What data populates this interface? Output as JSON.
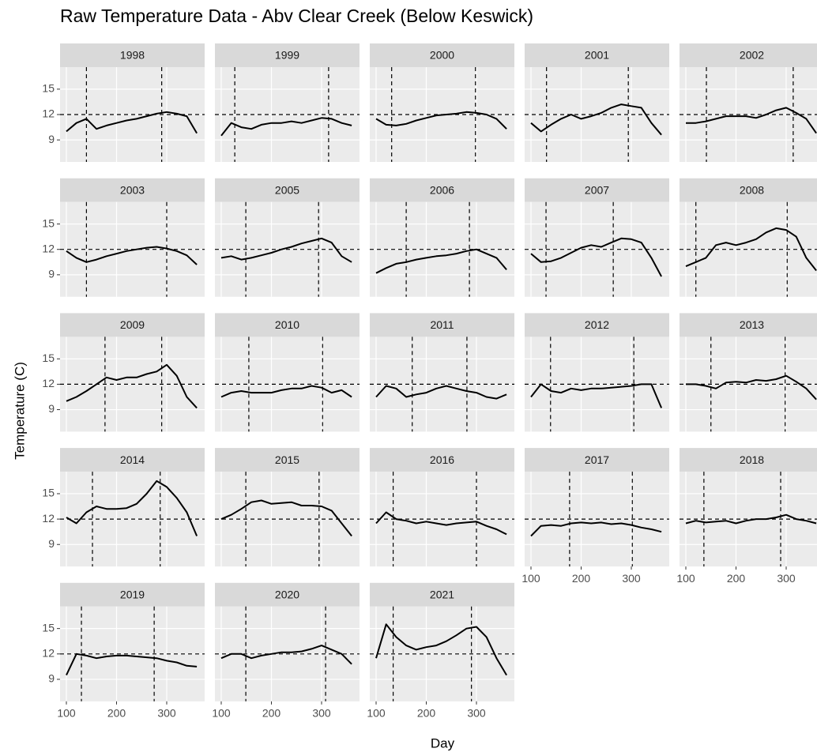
{
  "chart_data": {
    "type": "line",
    "title": "Raw Temperature Data - Abv Clear Creek (Below Keswick)",
    "x_label": "Day",
    "y_label": "Temperature (C)",
    "xlim": [
      87.4,
      375.6
    ],
    "ylim": [
      6.4,
      17.6
    ],
    "xticks": [
      100,
      200,
      300
    ],
    "yticks": [
      9,
      12,
      15
    ],
    "grid": true,
    "hline": 12,
    "color": "#000000",
    "x": [
      100,
      120,
      140,
      160,
      180,
      200,
      220,
      240,
      260,
      280,
      300,
      320,
      340,
      360
    ],
    "panels": [
      {
        "name": "1998",
        "vlines": [
          140,
          290
        ],
        "values": [
          10,
          11,
          11.5,
          10.3,
          10.7,
          11,
          11.3,
          11.5,
          11.8,
          12.1,
          12.3,
          12.1,
          11.8,
          9.8
        ]
      },
      {
        "name": "1999",
        "vlines": [
          127,
          314
        ],
        "values": [
          9.5,
          11,
          10.5,
          10.3,
          10.8,
          11,
          11,
          11.2,
          11,
          11.3,
          11.6,
          11.5,
          11,
          10.7
        ]
      },
      {
        "name": "2000",
        "vlines": [
          131,
          298
        ],
        "values": [
          11.5,
          10.8,
          10.7,
          10.9,
          11.3,
          11.6,
          11.9,
          12,
          12.1,
          12.3,
          12.2,
          12,
          11.5,
          10.3
        ]
      },
      {
        "name": "2001",
        "vlines": [
          131,
          294
        ],
        "values": [
          11,
          10,
          10.8,
          11.5,
          12,
          11.5,
          11.8,
          12.2,
          12.8,
          13.2,
          13,
          12.8,
          11,
          9.6
        ]
      },
      {
        "name": "2002",
        "vlines": [
          141,
          314
        ],
        "values": [
          11,
          11,
          11.2,
          11.5,
          11.8,
          11.8,
          11.8,
          11.6,
          12,
          12.5,
          12.8,
          12.2,
          11.5,
          9.8
        ]
      },
      {
        "name": "2003",
        "vlines": [
          140,
          300
        ],
        "values": [
          11.8,
          11,
          10.5,
          10.8,
          11.2,
          11.5,
          11.8,
          12,
          12.2,
          12.3,
          12.1,
          11.8,
          11.3,
          10.2
        ]
      },
      {
        "name": "2005",
        "vlines": [
          149,
          294
        ],
        "values": [
          11,
          11.2,
          10.8,
          11,
          11.3,
          11.6,
          12,
          12.3,
          12.7,
          13,
          13.3,
          12.8,
          11.2,
          10.5
        ]
      },
      {
        "name": "2006",
        "vlines": [
          160,
          286
        ],
        "values": [
          9.2,
          9.8,
          10.3,
          10.5,
          10.8,
          11,
          11.2,
          11.3,
          11.5,
          11.8,
          12,
          11.5,
          11,
          9.6
        ]
      },
      {
        "name": "2007",
        "vlines": [
          130,
          264
        ],
        "values": [
          11.5,
          10.5,
          10.6,
          11,
          11.6,
          12.2,
          12.5,
          12.3,
          12.8,
          13.3,
          13.2,
          12.8,
          11,
          8.8
        ]
      },
      {
        "name": "2008",
        "vlines": [
          120,
          302
        ],
        "values": [
          10,
          10.5,
          11,
          12.5,
          12.8,
          12.5,
          12.8,
          13.2,
          14,
          14.5,
          14.3,
          13.5,
          11,
          9.5
        ]
      },
      {
        "name": "2009",
        "vlines": [
          177,
          290
        ],
        "values": [
          10,
          10.5,
          11.2,
          12,
          12.8,
          12.5,
          12.8,
          12.8,
          13.2,
          13.5,
          14.3,
          13,
          10.5,
          9.2
        ]
      },
      {
        "name": "2010",
        "vlines": [
          155,
          302
        ],
        "values": [
          10.5,
          11,
          11.2,
          11,
          11,
          11,
          11.3,
          11.5,
          11.5,
          11.8,
          11.6,
          11,
          11.3,
          10.5
        ]
      },
      {
        "name": "2011",
        "vlines": [
          172,
          281
        ],
        "values": [
          10.5,
          11.8,
          11.5,
          10.5,
          10.8,
          11,
          11.5,
          11.8,
          11.5,
          11.2,
          11,
          10.5,
          10.3,
          10.8
        ]
      },
      {
        "name": "2012",
        "vlines": [
          139,
          305
        ],
        "values": [
          10.5,
          12,
          11.2,
          11,
          11.5,
          11.3,
          11.5,
          11.5,
          11.6,
          11.7,
          11.8,
          12,
          12,
          9.2
        ]
      },
      {
        "name": "2013",
        "vlines": [
          150,
          298
        ],
        "values": [
          12,
          12,
          11.8,
          11.5,
          12.2,
          12.3,
          12.2,
          12.5,
          12.4,
          12.6,
          13,
          12.3,
          11.5,
          10.2
        ]
      },
      {
        "name": "2014",
        "vlines": [
          152,
          287
        ],
        "values": [
          12.2,
          11.5,
          12.8,
          13.5,
          13.2,
          13.2,
          13.3,
          13.8,
          15,
          16.5,
          15.8,
          14.5,
          12.8,
          10
        ]
      },
      {
        "name": "2015",
        "vlines": [
          149,
          295
        ],
        "values": [
          12,
          12.5,
          13.2,
          14,
          14.2,
          13.8,
          13.9,
          14,
          13.6,
          13.6,
          13.5,
          13,
          11.5,
          10
        ]
      },
      {
        "name": "2016",
        "vlines": [
          134,
          300
        ],
        "values": [
          11.5,
          12.8,
          12,
          11.8,
          11.5,
          11.7,
          11.5,
          11.3,
          11.5,
          11.6,
          11.7,
          11.2,
          10.8,
          10.2
        ]
      },
      {
        "name": "2017",
        "vlines": [
          177,
          302
        ],
        "values": [
          10,
          11.2,
          11.3,
          11.2,
          11.5,
          11.6,
          11.5,
          11.6,
          11.4,
          11.5,
          11.3,
          11,
          10.8,
          10.5
        ]
      },
      {
        "name": "2018",
        "vlines": [
          136,
          289
        ],
        "values": [
          11.5,
          11.8,
          11.6,
          11.7,
          11.8,
          11.5,
          11.8,
          12,
          12,
          12.2,
          12.5,
          12,
          11.8,
          11.5
        ]
      },
      {
        "name": "2019",
        "vlines": [
          130,
          275
        ],
        "values": [
          9.5,
          12,
          11.8,
          11.5,
          11.7,
          11.8,
          11.8,
          11.7,
          11.6,
          11.5,
          11.2,
          11,
          10.6,
          10.5
        ]
      },
      {
        "name": "2020",
        "vlines": [
          149,
          308
        ],
        "values": [
          11.5,
          12,
          12,
          11.5,
          11.8,
          12,
          12.2,
          12.2,
          12.3,
          12.6,
          13,
          12.5,
          12,
          10.8
        ]
      },
      {
        "name": "2021",
        "vlines": [
          134,
          290
        ],
        "values": [
          11.5,
          15.5,
          14,
          13,
          12.5,
          12.8,
          13,
          13.5,
          14.2,
          15,
          15.2,
          14,
          11.5,
          9.5
        ]
      }
    ]
  }
}
